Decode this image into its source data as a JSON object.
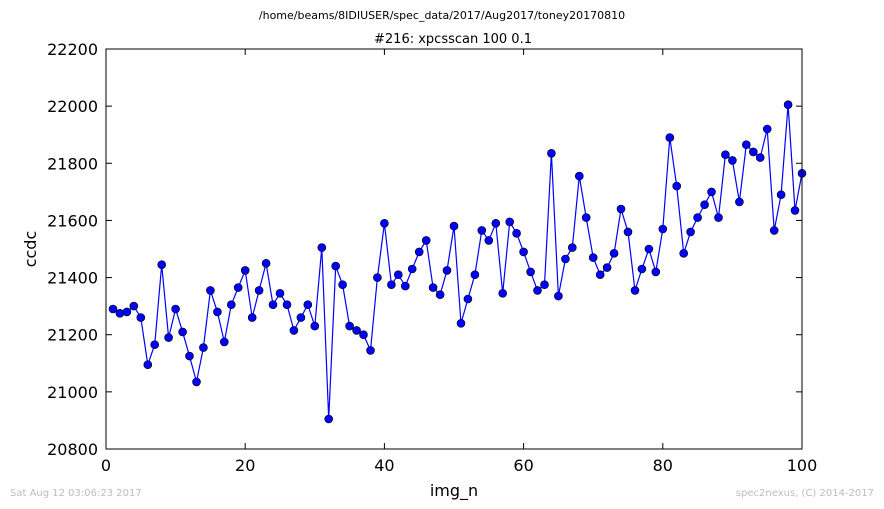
{
  "suptitle": "/home/beams/8IDIUSER/spec_data/2017/Aug2017/toney20170810",
  "footer": {
    "timestamp": "Sat Aug 12 03:06:23 2017",
    "credit": "spec2nexus, (C) 2014-2017"
  },
  "chart_data": {
    "type": "line",
    "title": "#216: xpcsscan 100 0.1",
    "xlabel": "img_n",
    "ylabel": "ccdc",
    "xlim": [
      0,
      100
    ],
    "ylim": [
      20800,
      22200
    ],
    "xticks": [
      0,
      20,
      40,
      60,
      80,
      100
    ],
    "yticks": [
      20800,
      21000,
      21200,
      21400,
      21600,
      21800,
      22000,
      22200
    ],
    "grid": false,
    "line_color": "#0000ff",
    "marker": "circle",
    "x": [
      1,
      2,
      3,
      4,
      5,
      6,
      7,
      8,
      9,
      10,
      11,
      12,
      13,
      14,
      15,
      16,
      17,
      18,
      19,
      20,
      21,
      22,
      23,
      24,
      25,
      26,
      27,
      28,
      29,
      30,
      31,
      32,
      33,
      34,
      35,
      36,
      37,
      38,
      39,
      40,
      41,
      42,
      43,
      44,
      45,
      46,
      47,
      48,
      49,
      50,
      51,
      52,
      53,
      54,
      55,
      56,
      57,
      58,
      59,
      60,
      61,
      62,
      63,
      64,
      65,
      66,
      67,
      68,
      69,
      70,
      71,
      72,
      73,
      74,
      75,
      76,
      77,
      78,
      79,
      80,
      81,
      82,
      83,
      84,
      85,
      86,
      87,
      88,
      89,
      90,
      91,
      92,
      93,
      94,
      95,
      96,
      97,
      98,
      99,
      100
    ],
    "y": [
      21290,
      21275,
      21280,
      21300,
      21260,
      21095,
      21165,
      21445,
      21190,
      21290,
      21210,
      21125,
      21035,
      21155,
      21355,
      21280,
      21175,
      21305,
      21365,
      21425,
      21260,
      21355,
      21450,
      21305,
      21345,
      21305,
      21215,
      21260,
      21305,
      21230,
      21505,
      20905,
      21440,
      21375,
      21230,
      21215,
      21200,
      21145,
      21400,
      21590,
      21375,
      21410,
      21370,
      21430,
      21490,
      21530,
      21365,
      21340,
      21425,
      21580,
      21240,
      21325,
      21410,
      21565,
      21530,
      21590,
      21345,
      21595,
      21555,
      21490,
      21420,
      21355,
      21375,
      21835,
      21335,
      21465,
      21505,
      21755,
      21610,
      21470,
      21410,
      21435,
      21485,
      21640,
      21560,
      21355,
      21430,
      21500,
      21420,
      21570,
      21890,
      21720,
      21485,
      21560,
      21610,
      21655,
      21700,
      21610,
      21830,
      21810,
      21665,
      21865,
      21840,
      21820,
      21920,
      21565,
      21690,
      22005,
      21635,
      21765
    ]
  }
}
